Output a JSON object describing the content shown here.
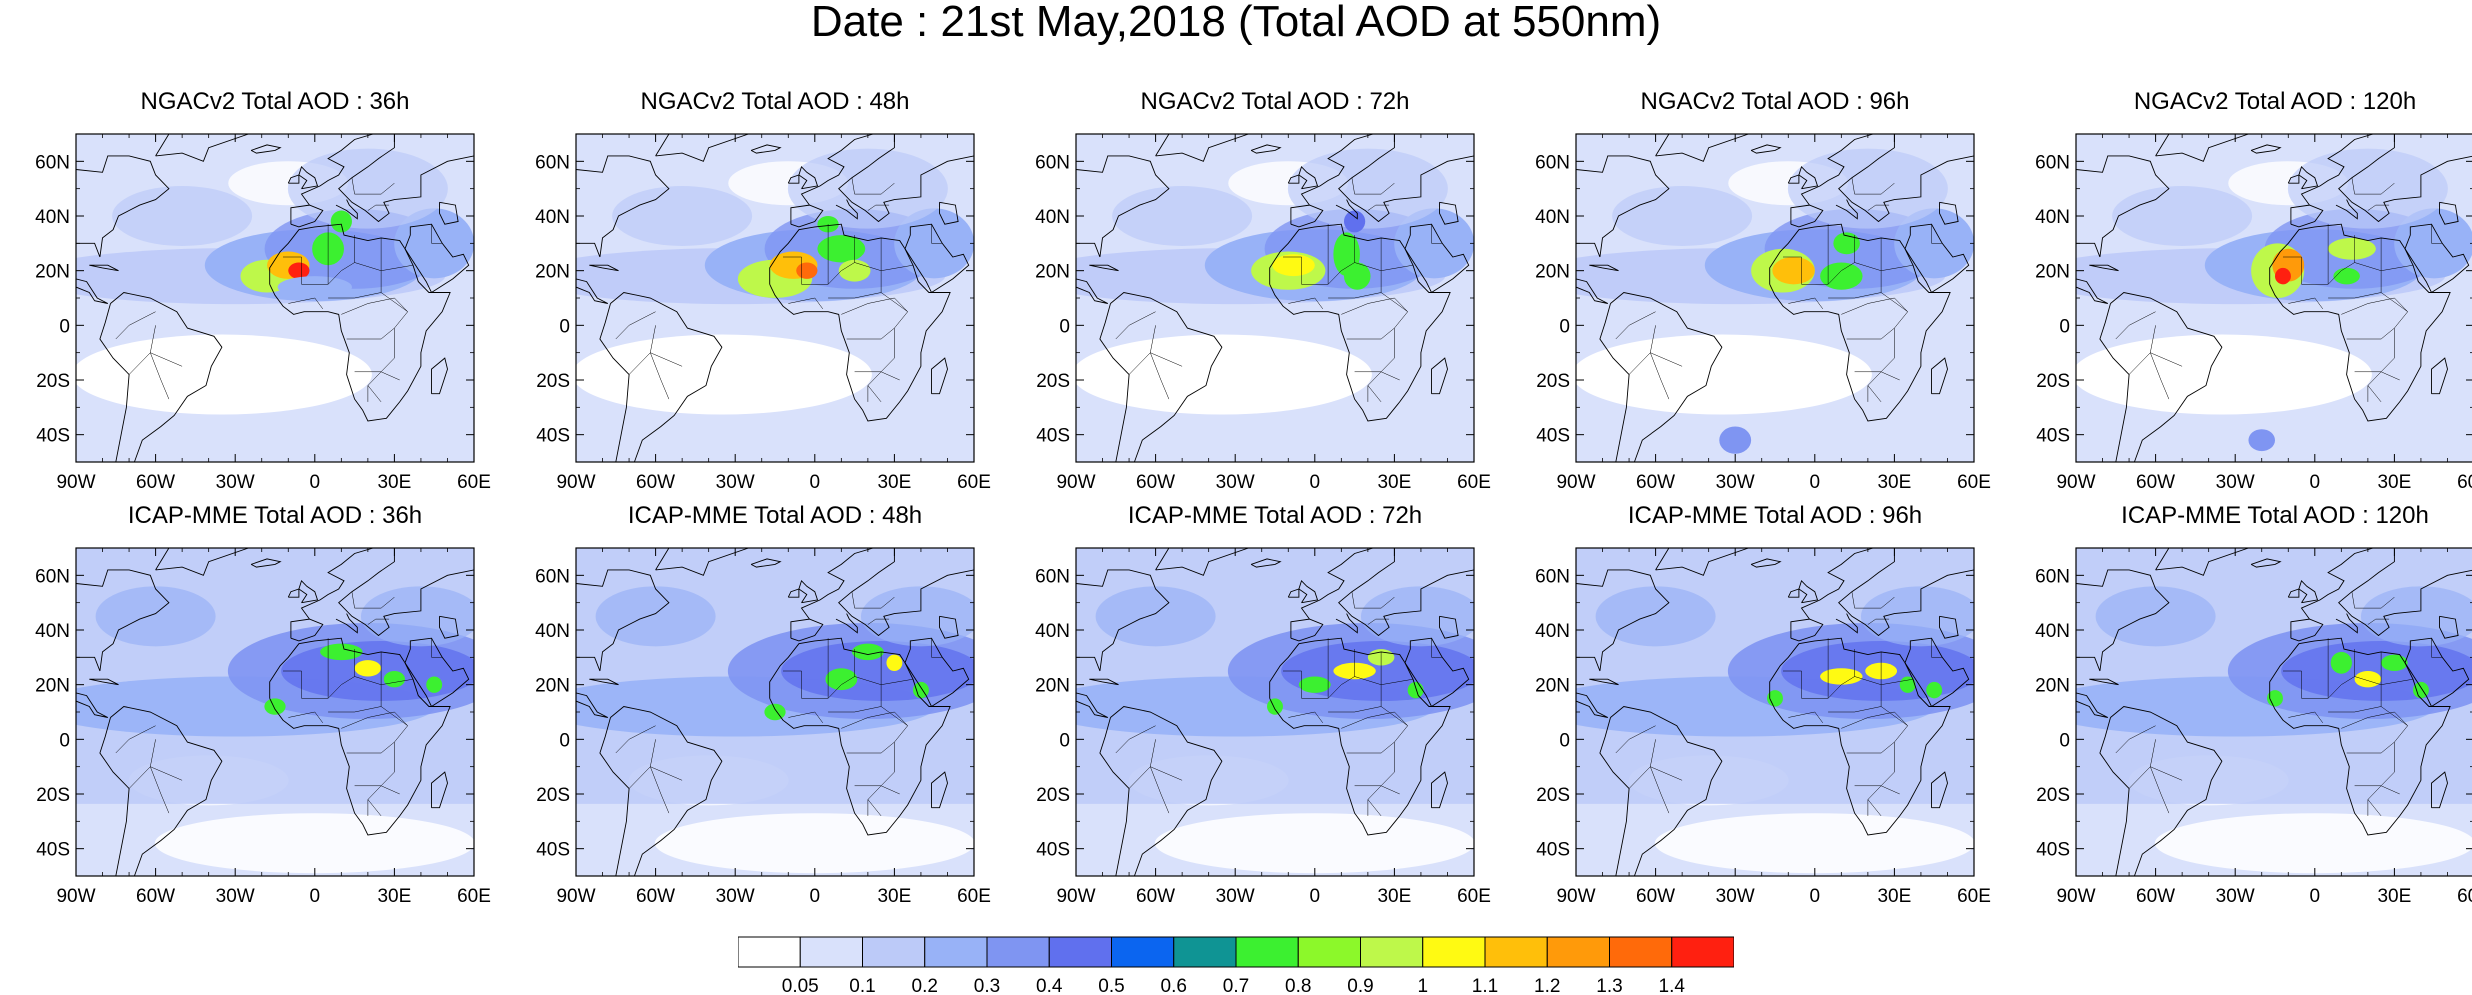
{
  "title": "Date : 21st May,2018 (Total AOD at 550nm)",
  "map": {
    "lon_range": [
      -90,
      60
    ],
    "lat_range": [
      -50,
      70
    ],
    "lon_ticks": [
      {
        "value": -90,
        "label": "90W"
      },
      {
        "value": -60,
        "label": "60W"
      },
      {
        "value": -30,
        "label": "30W"
      },
      {
        "value": 0,
        "label": "0"
      },
      {
        "value": 30,
        "label": "30E"
      },
      {
        "value": 60,
        "label": "60E"
      }
    ],
    "lat_ticks": [
      {
        "value": 60,
        "label": "60N"
      },
      {
        "value": 40,
        "label": "40N"
      },
      {
        "value": 20,
        "label": "20N"
      },
      {
        "value": 0,
        "label": "0"
      },
      {
        "value": -20,
        "label": "20S"
      },
      {
        "value": -40,
        "label": "40S"
      }
    ]
  },
  "rows": [
    {
      "model": "NGACv2",
      "panels": [
        {
          "title": "NGACv2 Total AOD : 36h",
          "lead": "36h"
        },
        {
          "title": "NGACv2 Total AOD : 48h",
          "lead": "48h"
        },
        {
          "title": "NGACv2 Total AOD : 72h",
          "lead": "72h"
        },
        {
          "title": "NGACv2 Total AOD : 96h",
          "lead": "96h"
        },
        {
          "title": "NGACv2 Total AOD : 120h",
          "lead": "120h"
        }
      ]
    },
    {
      "model": "ICAP-MME",
      "panels": [
        {
          "title": "ICAP-MME Total AOD : 36h",
          "lead": "36h"
        },
        {
          "title": "ICAP-MME Total AOD : 48h",
          "lead": "48h"
        },
        {
          "title": "ICAP-MME Total AOD : 72h",
          "lead": "72h"
        },
        {
          "title": "ICAP-MME Total AOD : 96h",
          "lead": "96h"
        },
        {
          "title": "ICAP-MME Total AOD : 120h",
          "lead": "120h"
        }
      ]
    }
  ],
  "colorbar": {
    "levels": [
      "0.05",
      "0.1",
      "0.2",
      "0.3",
      "0.4",
      "0.5",
      "0.6",
      "0.7",
      "0.8",
      "0.9",
      "1",
      "1.1",
      "1.2",
      "1.3",
      "1.4"
    ],
    "colors": [
      "#ffffff",
      "#d9e1fb",
      "#bccaf8",
      "#98b2f7",
      "#7f95f2",
      "#6070ee",
      "#0b65f0",
      "#0f9494",
      "#3cf030",
      "#8cf82a",
      "#bef84a",
      "#fffa12",
      "#ffbf0a",
      "#ff9a0a",
      "#ff6a0a",
      "#ff2010"
    ]
  },
  "features": {
    "ngac": {
      "36h": [
        [
          -18,
          18,
          10,
          6,
          "#bef84a"
        ],
        [
          -10,
          22,
          8,
          5,
          "#ffbf0a"
        ],
        [
          -6,
          20,
          4,
          3,
          "#ff2010"
        ],
        [
          5,
          28,
          6,
          6,
          "#3cf030"
        ],
        [
          10,
          38,
          4,
          4,
          "#3cf030"
        ],
        [
          0,
          14,
          14,
          4,
          "#98b2f7"
        ]
      ],
      "48h": [
        [
          -15,
          17,
          14,
          7,
          "#bef84a"
        ],
        [
          -8,
          22,
          9,
          5,
          "#ffbf0a"
        ],
        [
          -3,
          20,
          4,
          3,
          "#ff6a0a"
        ],
        [
          10,
          28,
          9,
          5,
          "#3cf030"
        ],
        [
          15,
          20,
          6,
          4,
          "#bef84a"
        ],
        [
          5,
          37,
          4,
          3,
          "#3cf030"
        ]
      ],
      "72h": [
        [
          -10,
          20,
          14,
          7,
          "#bef84a"
        ],
        [
          -8,
          22,
          8,
          4,
          "#fffa12"
        ],
        [
          12,
          26,
          5,
          8,
          "#3cf030"
        ],
        [
          16,
          18,
          5,
          5,
          "#3cf030"
        ],
        [
          15,
          38,
          4,
          4,
          "#6070ee"
        ]
      ],
      "96h": [
        [
          -12,
          20,
          12,
          8,
          "#bef84a"
        ],
        [
          -8,
          20,
          8,
          5,
          "#ffbf0a"
        ],
        [
          10,
          18,
          8,
          5,
          "#3cf030"
        ],
        [
          12,
          30,
          5,
          4,
          "#3cf030"
        ],
        [
          -30,
          -42,
          6,
          5,
          "#7f95f2"
        ]
      ],
      "120h": [
        [
          -14,
          20,
          10,
          10,
          "#bef84a"
        ],
        [
          -10,
          22,
          6,
          6,
          "#ff9a0a"
        ],
        [
          -12,
          18,
          3,
          3,
          "#ff2010"
        ],
        [
          14,
          28,
          9,
          4,
          "#bef84a"
        ],
        [
          12,
          18,
          5,
          3,
          "#3cf030"
        ],
        [
          -20,
          -42,
          5,
          4,
          "#7f95f2"
        ]
      ]
    },
    "icap": {
      "36h": [
        [
          10,
          32,
          8,
          3,
          "#3cf030"
        ],
        [
          20,
          26,
          5,
          3,
          "#fffa12"
        ],
        [
          30,
          22,
          4,
          3,
          "#3cf030"
        ],
        [
          45,
          20,
          3,
          3,
          "#3cf030"
        ],
        [
          -15,
          12,
          4,
          3,
          "#3cf030"
        ]
      ],
      "48h": [
        [
          10,
          22,
          6,
          4,
          "#3cf030"
        ],
        [
          20,
          32,
          6,
          3,
          "#3cf030"
        ],
        [
          30,
          28,
          3,
          3,
          "#fffa12"
        ],
        [
          40,
          18,
          3,
          3,
          "#3cf030"
        ],
        [
          -15,
          10,
          4,
          3,
          "#3cf030"
        ]
      ],
      "72h": [
        [
          0,
          20,
          6,
          3,
          "#3cf030"
        ],
        [
          15,
          25,
          8,
          3,
          "#fffa12"
        ],
        [
          25,
          30,
          5,
          3,
          "#bef84a"
        ],
        [
          38,
          18,
          3,
          3,
          "#3cf030"
        ],
        [
          -15,
          12,
          3,
          3,
          "#3cf030"
        ]
      ],
      "96h": [
        [
          10,
          23,
          8,
          3,
          "#fffa12"
        ],
        [
          25,
          25,
          6,
          3,
          "#fffa12"
        ],
        [
          35,
          20,
          3,
          3,
          "#3cf030"
        ],
        [
          45,
          18,
          3,
          3,
          "#3cf030"
        ],
        [
          -15,
          15,
          3,
          3,
          "#3cf030"
        ]
      ],
      "120h": [
        [
          10,
          28,
          4,
          4,
          "#3cf030"
        ],
        [
          20,
          22,
          5,
          3,
          "#fffa12"
        ],
        [
          30,
          28,
          5,
          3,
          "#3cf030"
        ],
        [
          40,
          18,
          3,
          3,
          "#3cf030"
        ],
        [
          -15,
          15,
          3,
          3,
          "#3cf030"
        ]
      ]
    }
  }
}
